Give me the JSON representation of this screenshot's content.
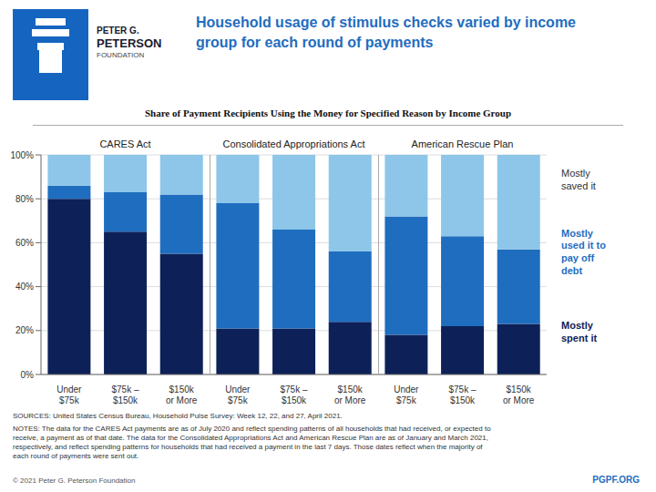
{
  "chart_data": {
    "type": "bar",
    "stacked": true,
    "title": "Household usage of stimulus checks varied by income\ngroup for each round of payments",
    "subtitle": "Share of Payment Recipients Using the Money for Specified Reason by Income Group",
    "categories": [
      "Under\n$75k",
      "$75k –\n$150k",
      "$150k\nor More",
      "Under\n$75k",
      "$75k –\n$150k",
      "$150k\nor More",
      "Under\n$75k",
      "$75k –\n$150k",
      "$150k\nor More"
    ],
    "series": [
      {
        "name": "Mostly\nspent it",
        "color": "#0d2158",
        "values": [
          80,
          65,
          55,
          21,
          21,
          24,
          18,
          22,
          23
        ]
      },
      {
        "name": "Mostly\nused it to\npay off\ndebt",
        "color": "#1f6dbf",
        "values": [
          6,
          18,
          27,
          57,
          45,
          32,
          54,
          41,
          34
        ]
      },
      {
        "name": "Mostly\nsaved it",
        "color": "#8dc6e8",
        "values": [
          14,
          17,
          18,
          22,
          34,
          44,
          28,
          37,
          43
        ]
      }
    ],
    "ylim": [
      0,
      100
    ],
    "yticks": [
      {
        "value": 0,
        "label": "0%"
      },
      {
        "value": 20,
        "label": "20%"
      },
      {
        "value": 40,
        "label": "40%"
      },
      {
        "value": 60,
        "label": "60%"
      },
      {
        "value": 80,
        "label": "80%"
      },
      {
        "value": 100,
        "label": "100%"
      }
    ],
    "grid": true,
    "legend": "right",
    "annotations": [
      "CARES Act",
      "Consolidated Appropriations Act",
      "American Rescue Plan"
    ],
    "logo_text": [
      "PETER G.",
      "PETERSON",
      "FOUNDATION"
    ],
    "source": "SOURCES: United States Census Bureau, Household Pulse Survey: Week 12, 22, and 27, April 2021.",
    "notes": "NOTES: The data for the CARES Act payments are as of July 2020 and reflect spending patterns of all households that had received, or expected to\nreceive, a payment as of that date. The data for the Consolidated Appropriations Act and American Rescue Plan are as of January and March 2021,\nrespectively, and reflect spending patterns for households that had received a payment in the last 7 days. Those dates reflect when the majority of\neach round of payments were sent out.",
    "footer": [
      "© 2021 Peter G. Peterson Foundation",
      "PGPF.ORG"
    ]
  }
}
